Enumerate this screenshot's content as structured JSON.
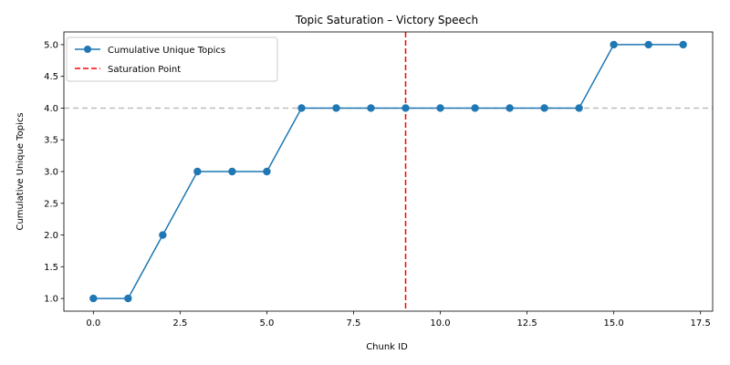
{
  "chart_data": {
    "type": "line",
    "title": "Topic Saturation – Victory Speech",
    "xlabel": "Chunk ID",
    "ylabel": "Cumulative Unique Topics",
    "xlim": [
      -0.85,
      17.85
    ],
    "ylim": [
      0.8,
      5.2
    ],
    "xticks": [
      0.0,
      2.5,
      5.0,
      7.5,
      10.0,
      12.5,
      15.0,
      17.5
    ],
    "xtick_labels": [
      "0.0",
      "2.5",
      "5.0",
      "7.5",
      "10.0",
      "12.5",
      "15.0",
      "17.5"
    ],
    "yticks": [
      1.0,
      1.5,
      2.0,
      2.5,
      3.0,
      3.5,
      4.0,
      4.5,
      5.0
    ],
    "ytick_labels": [
      "1.0",
      "1.5",
      "2.0",
      "2.5",
      "3.0",
      "3.5",
      "4.0",
      "4.5",
      "5.0"
    ],
    "grid": false,
    "legend_position": "top-left",
    "series": [
      {
        "name": "Cumulative Unique Topics",
        "color": "#1f77b4",
        "marker": "circle",
        "x": [
          0,
          1,
          2,
          3,
          4,
          5,
          6,
          7,
          8,
          9,
          10,
          11,
          12,
          13,
          14,
          15,
          16,
          17
        ],
        "y": [
          1,
          1,
          2,
          3,
          3,
          3,
          4,
          4,
          4,
          4,
          4,
          4,
          4,
          4,
          4,
          5,
          5,
          5
        ]
      }
    ],
    "reference_lines": [
      {
        "name": "Saturation Point",
        "orientation": "vertical",
        "value": 9,
        "color": "#ff0000",
        "style": "dashed",
        "in_legend": true
      },
      {
        "name": "",
        "orientation": "horizontal",
        "value": 4,
        "color": "#bdbdbd",
        "style": "dashed",
        "in_legend": false
      }
    ]
  }
}
